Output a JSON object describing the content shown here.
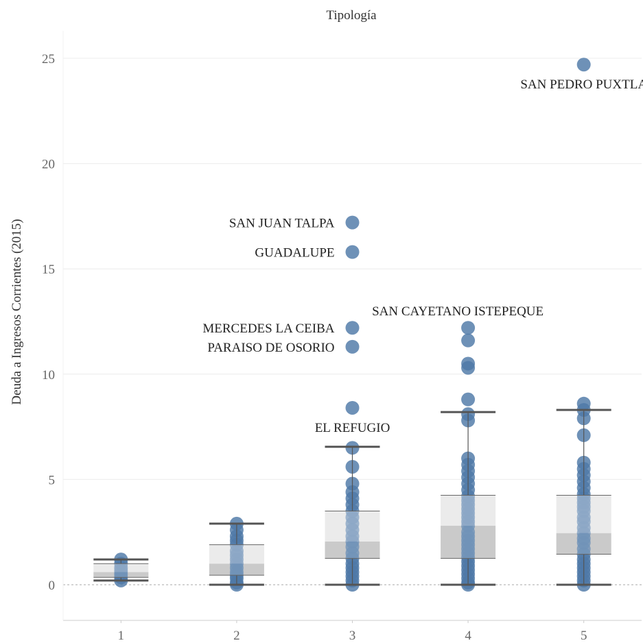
{
  "chart_data": {
    "type": "boxplot",
    "title": "Tipología",
    "xlabel": "",
    "ylabel": "Deuda a Ingresos Corrientes (2015)",
    "categories": [
      "1",
      "2",
      "3",
      "4",
      "5"
    ],
    "ylim": [
      -1.5,
      26.5
    ],
    "yticks": [
      0,
      5,
      10,
      15,
      20,
      25
    ],
    "grid": true,
    "zero_line": "dashed",
    "point_color": "#4e79a7",
    "box_colors": {
      "upper": "#e0e0e0",
      "lower": "#bdbdbd"
    },
    "whisker_color": "#555555",
    "boxes": [
      {
        "category": "1",
        "min": 0.2,
        "q1": 0.35,
        "median": 0.6,
        "q3": 1.0,
        "max": 1.2
      },
      {
        "category": "2",
        "min": 0.0,
        "q1": 0.45,
        "median": 1.0,
        "q3": 1.9,
        "max": 2.9
      },
      {
        "category": "3",
        "min": 0.0,
        "q1": 1.25,
        "median": 2.05,
        "q3": 3.5,
        "max": 6.55
      },
      {
        "category": "4",
        "min": 0.0,
        "q1": 1.25,
        "median": 2.8,
        "q3": 4.25,
        "max": 8.2
      },
      {
        "category": "5",
        "min": 0.0,
        "q1": 1.45,
        "median": 2.45,
        "q3": 4.25,
        "max": 8.3
      }
    ],
    "points": [
      {
        "category": "1",
        "values": [
          0.2,
          0.35,
          0.5,
          0.65,
          0.8,
          1.0,
          1.2
        ]
      },
      {
        "category": "2",
        "values": [
          0.0,
          0.1,
          0.3,
          0.45,
          0.6,
          0.8,
          1.0,
          1.2,
          1.4,
          1.6,
          1.9,
          2.1,
          2.3,
          2.6,
          2.9
        ]
      },
      {
        "category": "3",
        "values": [
          0.0,
          0.2,
          0.4,
          0.6,
          0.8,
          1.0,
          1.25,
          1.5,
          1.8,
          2.05,
          2.3,
          2.6,
          2.9,
          3.2,
          3.5,
          3.8,
          4.1,
          4.4,
          4.8,
          5.6,
          6.5,
          8.4,
          11.3,
          12.2,
          15.8,
          17.2
        ]
      },
      {
        "category": "4",
        "values": [
          0.0,
          0.1,
          0.3,
          0.5,
          0.7,
          0.9,
          1.1,
          1.3,
          1.5,
          1.7,
          1.9,
          2.1,
          2.3,
          2.5,
          2.8,
          3.0,
          3.2,
          3.4,
          3.6,
          3.8,
          4.0,
          4.2,
          4.5,
          4.8,
          5.1,
          5.4,
          5.7,
          6.0,
          7.8,
          8.1,
          8.8,
          10.3,
          10.5,
          11.6,
          12.2
        ]
      },
      {
        "category": "5",
        "values": [
          0.0,
          0.2,
          0.4,
          0.6,
          0.8,
          1.0,
          1.2,
          1.45,
          1.7,
          2.0,
          2.2,
          2.45,
          2.7,
          3.0,
          3.2,
          3.5,
          3.7,
          3.9,
          4.1,
          4.3,
          4.6,
          4.9,
          5.2,
          5.5,
          5.8,
          7.1,
          7.9,
          8.3,
          8.6,
          24.7
        ]
      }
    ],
    "annotations": [
      {
        "text": "SAN PEDRO PUXTLA",
        "category": "5",
        "value": 24.7,
        "position": "below"
      },
      {
        "text": "SAN JUAN TALPA",
        "category": "3",
        "value": 17.2,
        "position": "left"
      },
      {
        "text": "GUADALUPE",
        "category": "3",
        "value": 15.8,
        "position": "left"
      },
      {
        "text": "SAN CAYETANO ISTEPEQUE",
        "category": "4",
        "value": 12.2,
        "position": "above"
      },
      {
        "text": "MERCEDES LA CEIBA",
        "category": "3",
        "value": 12.2,
        "position": "left"
      },
      {
        "text": "PARAISO DE OSORIO",
        "category": "3",
        "value": 11.3,
        "position": "left"
      },
      {
        "text": "EL REFUGIO",
        "category": "3",
        "value": 8.4,
        "position": "below"
      }
    ]
  }
}
